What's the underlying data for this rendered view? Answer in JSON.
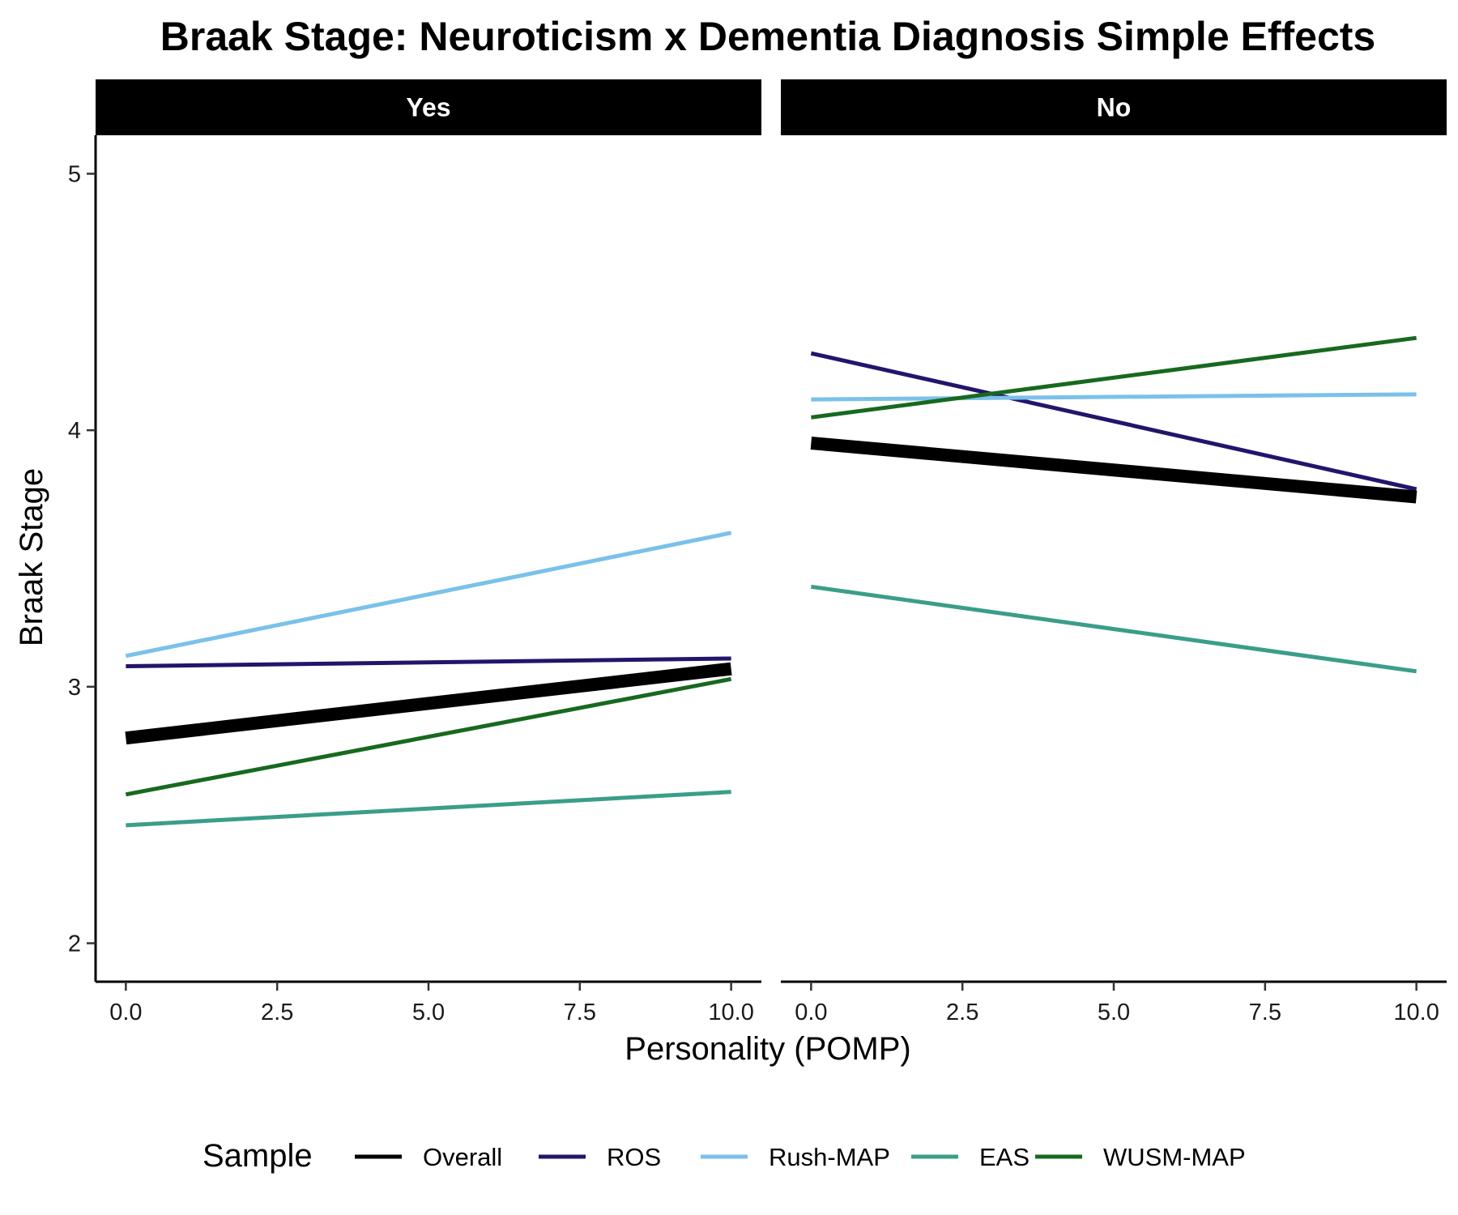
{
  "chart_data": {
    "type": "line",
    "title": "Braak Stage: Neuroticism x Dementia Diagnosis Simple Effects",
    "xlabel": "Personality (POMP)",
    "ylabel": "Braak Stage",
    "xlim": [
      -0.5,
      10.5
    ],
    "ylim": [
      1.85,
      5.15
    ],
    "xticks": [
      0,
      2.5,
      5,
      7.5,
      10
    ],
    "xtick_labels": [
      "0.0",
      "2.5",
      "5.0",
      "7.5",
      "10.0"
    ],
    "yticks": [
      2,
      3,
      4,
      5
    ],
    "ytick_labels": [
      "2",
      "3",
      "4",
      "5"
    ],
    "grid": false,
    "legend": {
      "title": "Sample",
      "position": "bottom",
      "entries": [
        "Overall",
        "ROS",
        "Rush-MAP",
        "EAS",
        "WUSM-MAP"
      ]
    },
    "series_colors": {
      "Overall": "#000000",
      "ROS": "#24146b",
      "Rush-MAP": "#7ac1ea",
      "EAS": "#3a9e88",
      "WUSM-MAP": "#17691f"
    },
    "panels": [
      {
        "label": "Yes",
        "series": [
          {
            "name": "Overall",
            "x": [
              0,
              10
            ],
            "y": [
              2.8,
              3.07
            ]
          },
          {
            "name": "ROS",
            "x": [
              0,
              10
            ],
            "y": [
              3.08,
              3.11
            ]
          },
          {
            "name": "Rush-MAP",
            "x": [
              0,
              10
            ],
            "y": [
              3.12,
              3.6
            ]
          },
          {
            "name": "EAS",
            "x": [
              0,
              10
            ],
            "y": [
              2.46,
              2.59
            ]
          },
          {
            "name": "WUSM-MAP",
            "x": [
              0,
              10
            ],
            "y": [
              2.58,
              3.03
            ]
          }
        ]
      },
      {
        "label": "No",
        "series": [
          {
            "name": "Overall",
            "x": [
              0,
              10
            ],
            "y": [
              3.95,
              3.74
            ]
          },
          {
            "name": "ROS",
            "x": [
              0,
              10
            ],
            "y": [
              4.3,
              3.77
            ]
          },
          {
            "name": "Rush-MAP",
            "x": [
              0,
              10
            ],
            "y": [
              4.12,
              4.14
            ]
          },
          {
            "name": "EAS",
            "x": [
              0,
              10
            ],
            "y": [
              3.39,
              3.06
            ]
          },
          {
            "name": "WUSM-MAP",
            "x": [
              0,
              10
            ],
            "y": [
              4.05,
              4.36
            ]
          }
        ]
      }
    ]
  }
}
